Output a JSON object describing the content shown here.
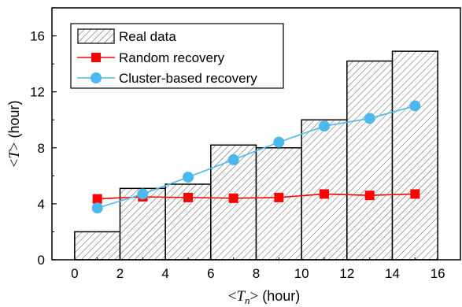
{
  "chart_data": {
    "type": "bar",
    "xlabel": "<T_n> (hour)",
    "ylabel": "<T> (hour)",
    "xlim": [
      -1,
      17
    ],
    "ylim": [
      0,
      18
    ],
    "xticks": [
      0,
      2,
      4,
      6,
      8,
      10,
      12,
      14,
      16
    ],
    "yticks": [
      0,
      4,
      8,
      12,
      16
    ],
    "grid": false,
    "legend_position": "top-left",
    "bars": {
      "name": "Real data",
      "bin_edges": [
        0,
        2,
        4,
        6,
        8,
        10,
        12,
        14,
        16
      ],
      "values": [
        2.0,
        5.1,
        5.4,
        8.2,
        8.0,
        10.0,
        14.2,
        14.9
      ],
      "fill_pattern": "diagonal-hatch"
    },
    "series": [
      {
        "name": "Random recovery",
        "color": "#ff0000",
        "marker": "square",
        "x": [
          1,
          3,
          5,
          7,
          9,
          11,
          13,
          15
        ],
        "y": [
          4.35,
          4.5,
          4.45,
          4.4,
          4.45,
          4.7,
          4.6,
          4.7
        ]
      },
      {
        "name": "Cluster-based recovery",
        "color": "#4db8ec",
        "marker": "circle",
        "x": [
          1,
          3,
          5,
          7,
          9,
          11,
          13,
          15
        ],
        "y": [
          3.7,
          4.7,
          5.9,
          7.15,
          8.4,
          9.55,
          10.1,
          11.0
        ]
      }
    ],
    "legend": [
      "Real data",
      "Random recovery",
      "Cluster-based recovery"
    ]
  }
}
